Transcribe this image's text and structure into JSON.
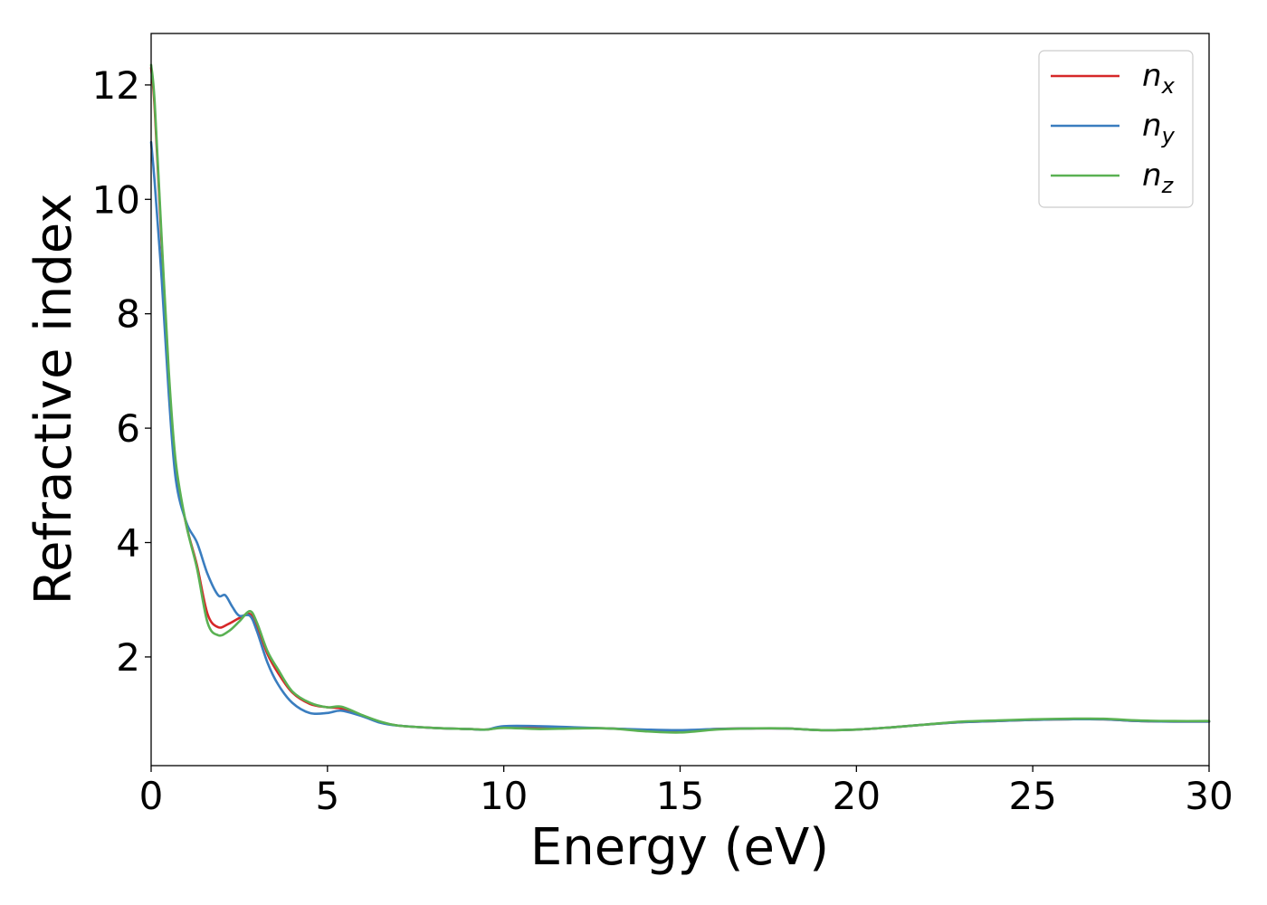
{
  "chart_data": {
    "type": "line",
    "xlabel": "Energy (eV)",
    "ylabel": "Refractive index",
    "xlim": [
      0,
      30
    ],
    "ylim": [
      0.1,
      12.9
    ],
    "xticks": [
      "0",
      "5",
      "10",
      "15",
      "20",
      "25",
      "30"
    ],
    "yticks": [
      "2",
      "4",
      "6",
      "8",
      "10",
      "12"
    ],
    "grid": false,
    "legend_position": "top-right",
    "series": [
      {
        "name": "n_x",
        "label_base": "n",
        "label_sub": "x",
        "color": "#d62728",
        "x": [
          0,
          0.1,
          0.3,
          0.5,
          0.7,
          1.0,
          1.3,
          1.6,
          1.9,
          2.2,
          2.5,
          2.8,
          3.0,
          3.3,
          3.6,
          4.0,
          4.5,
          5.0,
          5.4,
          6.0,
          6.5,
          7.0,
          8.0,
          9.0,
          9.5,
          10.0,
          11.0,
          12.0,
          13.0,
          14.0,
          15.0,
          16.0,
          17.0,
          18.0,
          19.0,
          20.0,
          21.0,
          22.0,
          23.0,
          24.0,
          25.0,
          26.0,
          27.0,
          28.0,
          29.0,
          30.0
        ],
        "y": [
          12.3,
          11.6,
          9.2,
          6.9,
          5.3,
          4.3,
          3.6,
          2.75,
          2.52,
          2.58,
          2.68,
          2.75,
          2.55,
          2.05,
          1.72,
          1.38,
          1.18,
          1.12,
          1.1,
          0.97,
          0.86,
          0.8,
          0.76,
          0.74,
          0.73,
          0.77,
          0.76,
          0.76,
          0.75,
          0.72,
          0.7,
          0.74,
          0.75,
          0.75,
          0.72,
          0.73,
          0.77,
          0.82,
          0.86,
          0.88,
          0.9,
          0.91,
          0.91,
          0.88,
          0.87,
          0.87
        ]
      },
      {
        "name": "n_y",
        "label_base": "n",
        "label_sub": "y",
        "color": "#3a7dbf",
        "x": [
          0,
          0.1,
          0.3,
          0.5,
          0.7,
          1.0,
          1.3,
          1.6,
          1.9,
          2.1,
          2.3,
          2.5,
          2.8,
          3.0,
          3.3,
          3.6,
          4.0,
          4.5,
          5.0,
          5.4,
          6.0,
          6.5,
          7.0,
          8.0,
          9.0,
          9.5,
          10.0,
          11.0,
          12.0,
          13.0,
          14.0,
          15.0,
          16.0,
          17.0,
          18.0,
          19.0,
          20.0,
          21.0,
          22.0,
          23.0,
          24.0,
          25.0,
          26.0,
          27.0,
          28.0,
          29.0,
          30.0
        ],
        "y": [
          11.0,
          10.3,
          8.6,
          6.6,
          5.1,
          4.35,
          4.0,
          3.45,
          3.08,
          3.08,
          2.88,
          2.72,
          2.72,
          2.45,
          1.9,
          1.52,
          1.2,
          1.02,
          1.02,
          1.06,
          0.96,
          0.85,
          0.8,
          0.76,
          0.74,
          0.73,
          0.79,
          0.79,
          0.77,
          0.75,
          0.73,
          0.72,
          0.74,
          0.75,
          0.75,
          0.72,
          0.73,
          0.77,
          0.82,
          0.86,
          0.88,
          0.9,
          0.91,
          0.91,
          0.88,
          0.87,
          0.87
        ]
      },
      {
        "name": "n_z",
        "label_base": "n",
        "label_sub": "z",
        "color": "#5ab153",
        "x": [
          0,
          0.1,
          0.3,
          0.5,
          0.7,
          1.0,
          1.3,
          1.6,
          1.9,
          2.2,
          2.5,
          2.8,
          3.0,
          3.3,
          3.6,
          4.0,
          4.5,
          5.0,
          5.4,
          6.0,
          6.5,
          7.0,
          8.0,
          9.0,
          9.5,
          10.0,
          11.0,
          12.0,
          13.0,
          14.0,
          15.0,
          16.0,
          17.0,
          18.0,
          19.0,
          20.0,
          21.0,
          22.0,
          23.0,
          24.0,
          25.0,
          26.0,
          27.0,
          28.0,
          29.0,
          30.0
        ],
        "y": [
          12.35,
          11.7,
          9.3,
          7.0,
          5.4,
          4.3,
          3.55,
          2.6,
          2.38,
          2.45,
          2.62,
          2.8,
          2.6,
          2.1,
          1.78,
          1.4,
          1.2,
          1.12,
          1.13,
          0.98,
          0.87,
          0.8,
          0.76,
          0.74,
          0.73,
          0.76,
          0.74,
          0.75,
          0.75,
          0.7,
          0.68,
          0.73,
          0.75,
          0.75,
          0.72,
          0.73,
          0.77,
          0.82,
          0.87,
          0.89,
          0.91,
          0.92,
          0.92,
          0.89,
          0.88,
          0.88
        ]
      }
    ]
  }
}
